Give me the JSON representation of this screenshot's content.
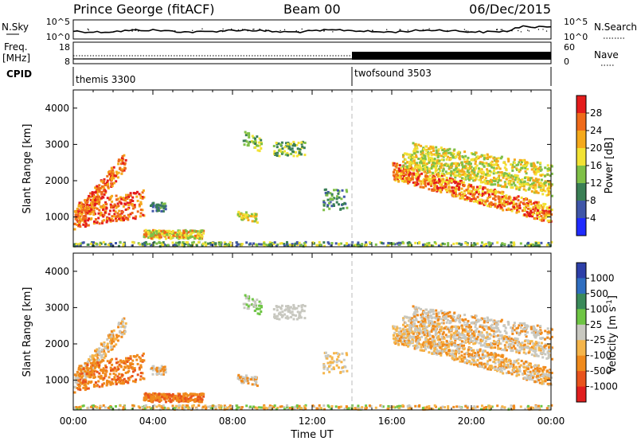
{
  "header": {
    "title": "Prince George (fitACF)",
    "beam": "Beam 00",
    "date": "06/Dec/2015"
  },
  "sky_panel": {
    "left_label": "N.Sky",
    "right_label": "N.Search",
    "left_ticks": [
      "10^5",
      "10^0"
    ],
    "right_ticks": [
      "10^5",
      "10^0"
    ]
  },
  "freq_panel": {
    "left_label": "Freq.",
    "left_unit": "[MHz]",
    "right_label": "Nave",
    "left_ticks": [
      "18",
      "8"
    ],
    "right_ticks": [
      "60",
      "0"
    ]
  },
  "cpid_panel": {
    "label": "CPID",
    "modes": [
      {
        "name": "themis 3300",
        "start_h": 0
      },
      {
        "name": "twofsound 3503",
        "start_h": 14
      }
    ]
  },
  "chart_data": [
    {
      "type": "heatmap",
      "name": "power",
      "ylabel": "Slant Range [km]",
      "ylim": [
        180,
        4500
      ],
      "y_ticks": [
        1000,
        2000,
        3000,
        4000
      ],
      "xlim": [
        0,
        24
      ],
      "colorbar": {
        "label": "Power [dB]",
        "ticks": [
          "4",
          "8",
          "12",
          "16",
          "20",
          "24",
          "28"
        ],
        "colors": [
          "#1f2bff",
          "#3f56a8",
          "#3a7f55",
          "#7fc047",
          "#f2e233",
          "#f5a91b",
          "#ef6a1a",
          "#e41c1c"
        ]
      }
    },
    {
      "type": "heatmap",
      "name": "velocity",
      "ylabel": "Slant Range [km]",
      "xlabel": "Time UT",
      "ylim": [
        180,
        4500
      ],
      "y_ticks": [
        1000,
        2000,
        3000,
        4000
      ],
      "x_ticks": [
        "00:00",
        "04:00",
        "08:00",
        "12:00",
        "16:00",
        "20:00",
        "00:00"
      ],
      "xlim": [
        0,
        24
      ],
      "colorbar": {
        "label": "Velocity [m s",
        "label_sup": "-1",
        "label_end": "]",
        "ticks": [
          "1000",
          "500",
          "100",
          "25",
          "-25",
          "-100",
          "-500",
          "-1000"
        ],
        "colors": [
          "#2d3fa8",
          "#2f6ec0",
          "#3a8a5a",
          "#6ec544",
          "#c8c8c0",
          "#f5b54a",
          "#f08a1c",
          "#e9531c",
          "#e01e1e"
        ]
      }
    }
  ]
}
